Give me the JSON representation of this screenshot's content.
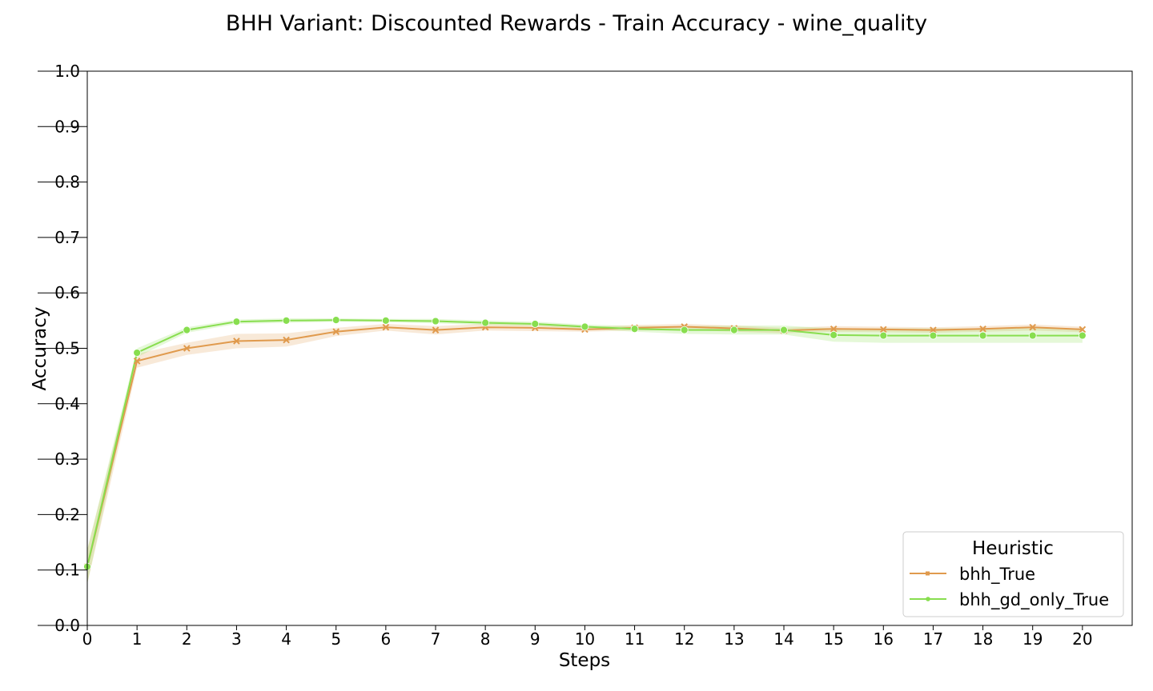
{
  "chart_data": {
    "type": "line",
    "title": "BHH Variant: Discounted Rewards - Train Accuracy - wine_quality",
    "xlabel": "Steps",
    "ylabel": "Accuracy",
    "xlim": [
      0,
      21
    ],
    "ylim": [
      0.0,
      1.0
    ],
    "x": [
      0,
      1,
      2,
      3,
      4,
      5,
      6,
      7,
      8,
      9,
      10,
      11,
      12,
      13,
      14,
      15,
      16,
      17,
      18,
      19,
      20
    ],
    "x_ticks": [
      "0",
      "1",
      "2",
      "3",
      "4",
      "5",
      "6",
      "7",
      "8",
      "9",
      "10",
      "11",
      "12",
      "13",
      "14",
      "15",
      "16",
      "17",
      "18",
      "19",
      "20"
    ],
    "y_ticks": [
      "0.0",
      "0.1",
      "0.2",
      "0.3",
      "0.4",
      "0.5",
      "0.6",
      "0.7",
      "0.8",
      "0.9",
      "1.0"
    ],
    "grid": false,
    "legend": {
      "title": "Heuristic",
      "placement": "bottom-right"
    },
    "series": [
      {
        "name": "bhh_True",
        "color": "#E09A4D",
        "marker": "x",
        "values": [
          0.106,
          0.477,
          0.5,
          0.513,
          0.515,
          0.53,
          0.538,
          0.533,
          0.538,
          0.537,
          0.534,
          0.537,
          0.539,
          0.536,
          0.532,
          0.535,
          0.534,
          0.533,
          0.535,
          0.538,
          0.534
        ],
        "band_lower": [
          0.075,
          0.465,
          0.488,
          0.5,
          0.503,
          0.522,
          0.532,
          0.525,
          0.532,
          0.531,
          0.53,
          0.532,
          0.533,
          0.53,
          0.527,
          0.53,
          0.529,
          0.528,
          0.53,
          0.532,
          0.529
        ],
        "band_upper": [
          0.137,
          0.49,
          0.51,
          0.526,
          0.527,
          0.537,
          0.544,
          0.54,
          0.544,
          0.542,
          0.538,
          0.542,
          0.544,
          0.541,
          0.537,
          0.54,
          0.539,
          0.538,
          0.54,
          0.543,
          0.539
        ]
      },
      {
        "name": "bhh_gd_only_True",
        "color": "#88DE4F",
        "marker": "o",
        "values": [
          0.106,
          0.492,
          0.533,
          0.548,
          0.55,
          0.551,
          0.55,
          0.549,
          0.546,
          0.544,
          0.539,
          0.535,
          0.533,
          0.533,
          0.533,
          0.524,
          0.523,
          0.523,
          0.523,
          0.523,
          0.523
        ],
        "band_lower": [
          0.075,
          0.484,
          0.528,
          0.544,
          0.546,
          0.548,
          0.547,
          0.545,
          0.542,
          0.54,
          0.535,
          0.53,
          0.526,
          0.525,
          0.525,
          0.512,
          0.51,
          0.51,
          0.51,
          0.51,
          0.51
        ],
        "band_upper": [
          0.137,
          0.5,
          0.538,
          0.552,
          0.554,
          0.554,
          0.553,
          0.553,
          0.55,
          0.548,
          0.543,
          0.54,
          0.54,
          0.541,
          0.541,
          0.536,
          0.536,
          0.536,
          0.536,
          0.536,
          0.536
        ]
      }
    ]
  }
}
